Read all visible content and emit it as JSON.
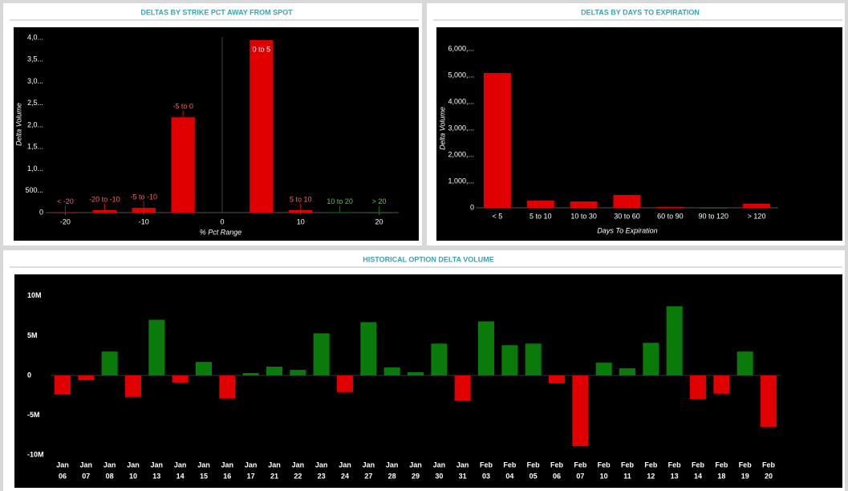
{
  "chart_data": [
    {
      "type": "bar",
      "title": "DELTAS BY STRIKE PCT AWAY FROM SPOT",
      "y_label": "Delta Volume",
      "x_label": "% Pct Range",
      "x": [
        -20,
        -15,
        -10,
        -5,
        5,
        10,
        15,
        20
      ],
      "labels": [
        "< -20",
        "-20 to -10",
        "-5 to -10",
        "-5 to 0",
        "0 to 5",
        "5 to 10",
        "10 to 20",
        "> 20"
      ],
      "values": [
        5,
        55,
        110,
        2180,
        3945,
        55,
        10,
        5
      ],
      "colors": [
        "#e00000",
        "#e00000",
        "#e00000",
        "#e00000",
        "#e00000",
        "#e00000",
        "#0a7a0a",
        "#0a7a0a"
      ],
      "xlim": [
        -22.5,
        22.5
      ],
      "xticks": [
        -20,
        -10,
        0,
        10,
        20
      ],
      "ylim": [
        0,
        4130
      ],
      "yticks": [
        0,
        {
          "value": 500,
          "label": "500..."
        },
        {
          "value": 1000,
          "label": "1,0..."
        },
        {
          "value": 1500,
          "label": "1,5..."
        },
        {
          "value": 2000,
          "label": "2,0..."
        },
        {
          "value": 2500,
          "label": "2,5..."
        },
        {
          "value": 3000,
          "label": "3,0..."
        },
        {
          "value": 3500,
          "label": "3,5..."
        },
        {
          "value": 4000,
          "label": "4,0..."
        }
      ]
    },
    {
      "type": "bar",
      "title": "DELTAS BY DAYS TO EXPIRATION",
      "y_label": "Delta Volume",
      "x_label": "Days To Expiration",
      "categories": [
        "< 5",
        "5 to 10",
        "10 to 30",
        "30 to 60",
        "60 to 90",
        "90 to 120",
        "> 120"
      ],
      "values": [
        5090,
        270,
        240,
        485,
        30,
        5,
        150
      ],
      "colors": [
        "#e00000",
        "#e00000",
        "#e00000",
        "#e00000",
        "#e00000",
        "#0a7a0a",
        "#e00000"
      ],
      "ylim": [
        0,
        6330
      ],
      "yticks": [
        0,
        {
          "value": 1000,
          "label": "1,000,..."
        },
        {
          "value": 2000,
          "label": "2,000,..."
        },
        {
          "value": 3000,
          "label": "3,000,..."
        },
        {
          "value": 4000,
          "label": "4,000,..."
        },
        {
          "value": 5000,
          "label": "5,000,..."
        },
        {
          "value": 6000,
          "label": "6,000,..."
        }
      ]
    },
    {
      "type": "bar",
      "title": "HISTORICAL OPTION DELTA VOLUME",
      "categories": [
        [
          "Jan",
          "06"
        ],
        [
          "Jan",
          "07"
        ],
        [
          "Jan",
          "08"
        ],
        [
          "Jan",
          "10"
        ],
        [
          "Jan",
          "13"
        ],
        [
          "Jan",
          "14"
        ],
        [
          "Jan",
          "15"
        ],
        [
          "Jan",
          "16"
        ],
        [
          "Jan",
          "17"
        ],
        [
          "Jan",
          "21"
        ],
        [
          "Jan",
          "22"
        ],
        [
          "Jan",
          "23"
        ],
        [
          "Jan",
          "24"
        ],
        [
          "Jan",
          "27"
        ],
        [
          "Jan",
          "28"
        ],
        [
          "Jan",
          "29"
        ],
        [
          "Jan",
          "30"
        ],
        [
          "Jan",
          "31"
        ],
        [
          "Feb",
          "03"
        ],
        [
          "Feb",
          "04"
        ],
        [
          "Feb",
          "05"
        ],
        [
          "Feb",
          "06"
        ],
        [
          "Feb",
          "07"
        ],
        [
          "Feb",
          "10"
        ],
        [
          "Feb",
          "11"
        ],
        [
          "Feb",
          "12"
        ],
        [
          "Feb",
          "13"
        ],
        [
          "Feb",
          "14"
        ],
        [
          "Feb",
          "18"
        ],
        [
          "Feb",
          "19"
        ],
        [
          "Feb",
          "20"
        ]
      ],
      "values": [
        -2400000,
        -600000,
        3000000,
        -2700000,
        7000000,
        -900000,
        1700000,
        -2900000,
        300000,
        1100000,
        700000,
        5300000,
        -2100000,
        6700000,
        1000000,
        400000,
        4000000,
        -3200000,
        6800000,
        3800000,
        4000000,
        -1000000,
        -8900000,
        1600000,
        900000,
        4100000,
        8700000,
        -3000000,
        -2300000,
        3000000,
        -6500000
      ],
      "positive_color": "#0a7a0a",
      "negative_color": "#e00000",
      "ylim": [
        -10800000,
        11700000
      ],
      "yticks": [
        {
          "value": -10000000,
          "label": "-10M"
        },
        {
          "value": -5000000,
          "label": "-5M"
        },
        0,
        {
          "value": 5000000,
          "label": "5M"
        },
        {
          "value": 10000000,
          "label": "10M"
        }
      ]
    }
  ]
}
